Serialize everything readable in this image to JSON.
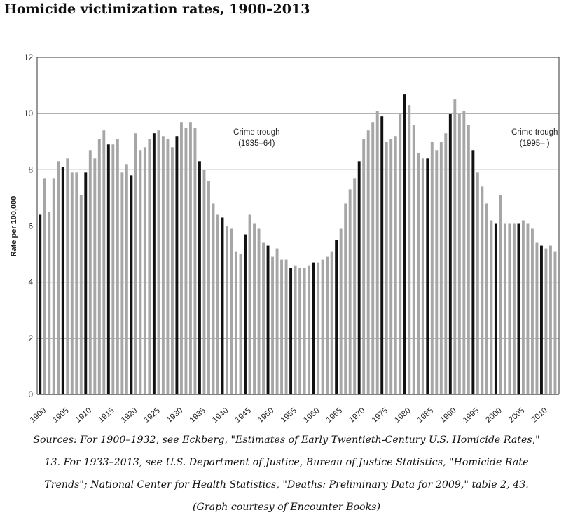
{
  "title": "Homicide victimization rates, 1900–2013",
  "caption_lines": [
    "Sources: For 1900–1932, see Eckberg, \"Estimates of Early Twentieth-Century U.S. Homicide Rates,\"",
    "13. For 1933–2013, see U.S. Department of Justice, Bureau of Justice Statistics, \"Homicide Rate",
    "Trends\"; National Center for Health Statistics, \"Deaths: Preliminary Data for 2009,\" table 2, 43.",
    "(Graph courtesy of Encounter Books)"
  ],
  "colors": {
    "bar": "#a6a6a6",
    "bar_highlight": "#111111",
    "grid": "#333333",
    "background": "#ffffff"
  },
  "chart_data": {
    "type": "bar",
    "title": "",
    "xlabel": "",
    "ylabel": "Rate per 100,000",
    "ylim": [
      0,
      12
    ],
    "yticks": [
      0,
      2,
      4,
      6,
      8,
      10,
      12
    ],
    "grid": true,
    "xtick_labels": [
      "1900",
      "1905",
      "1910",
      "1915",
      "1920",
      "1925",
      "1930",
      "1935",
      "1940",
      "1945",
      "1950",
      "1955",
      "1960",
      "1965",
      "1970",
      "1975",
      "1980",
      "1985",
      "1990",
      "1995",
      "2000",
      "2005",
      "2010"
    ],
    "highlight_every": 5,
    "x": [
      1900,
      1901,
      1902,
      1903,
      1904,
      1905,
      1906,
      1907,
      1908,
      1909,
      1910,
      1911,
      1912,
      1913,
      1914,
      1915,
      1916,
      1917,
      1918,
      1919,
      1920,
      1921,
      1922,
      1923,
      1924,
      1925,
      1926,
      1927,
      1928,
      1929,
      1930,
      1931,
      1932,
      1933,
      1934,
      1935,
      1936,
      1937,
      1938,
      1939,
      1940,
      1941,
      1942,
      1943,
      1944,
      1945,
      1946,
      1947,
      1948,
      1949,
      1950,
      1951,
      1952,
      1953,
      1954,
      1955,
      1956,
      1957,
      1958,
      1959,
      1960,
      1961,
      1962,
      1963,
      1964,
      1965,
      1966,
      1967,
      1968,
      1969,
      1970,
      1971,
      1972,
      1973,
      1974,
      1975,
      1976,
      1977,
      1978,
      1979,
      1980,
      1981,
      1982,
      1983,
      1984,
      1985,
      1986,
      1987,
      1988,
      1989,
      1990,
      1991,
      1992,
      1993,
      1994,
      1995,
      1996,
      1997,
      1998,
      1999,
      2000,
      2001,
      2002,
      2003,
      2004,
      2005,
      2006,
      2007,
      2008,
      2009,
      2010,
      2011,
      2012,
      2013
    ],
    "values": [
      6.4,
      7.7,
      6.5,
      7.7,
      8.3,
      8.1,
      8.4,
      7.9,
      7.9,
      7.1,
      7.9,
      8.7,
      8.4,
      9.1,
      9.4,
      8.9,
      8.9,
      9.1,
      7.9,
      8.2,
      7.8,
      9.3,
      8.7,
      8.8,
      9.1,
      9.3,
      9.4,
      9.2,
      9.1,
      8.8,
      9.2,
      9.7,
      9.5,
      9.7,
      9.5,
      8.3,
      8.0,
      7.6,
      6.8,
      6.4,
      6.3,
      6.0,
      5.9,
      5.1,
      5.0,
      5.7,
      6.4,
      6.1,
      5.9,
      5.4,
      5.3,
      4.9,
      5.2,
      4.8,
      4.8,
      4.5,
      4.6,
      4.5,
      4.5,
      4.6,
      4.7,
      4.7,
      4.8,
      4.9,
      5.1,
      5.5,
      5.9,
      6.8,
      7.3,
      7.7,
      8.3,
      9.1,
      9.4,
      9.7,
      10.1,
      9.9,
      9.0,
      9.1,
      9.2,
      10.0,
      10.7,
      10.3,
      9.6,
      8.6,
      8.4,
      8.4,
      9.0,
      8.7,
      9.0,
      9.3,
      10.0,
      10.5,
      10.0,
      10.1,
      9.6,
      8.7,
      7.9,
      7.4,
      6.8,
      6.2,
      6.1,
      7.1,
      6.1,
      6.1,
      6.1,
      6.1,
      6.2,
      6.1,
      5.9,
      5.4,
      5.3,
      5.2,
      5.3,
      5.1
    ],
    "annotations": [
      {
        "label": "Crime trough",
        "sublabel": "(1935–64)",
        "x": 1947.5,
        "y": 9.1
      },
      {
        "label": "Crime trough",
        "sublabel": "(1995– )",
        "x": 2008.5,
        "y": 9.1
      }
    ]
  }
}
